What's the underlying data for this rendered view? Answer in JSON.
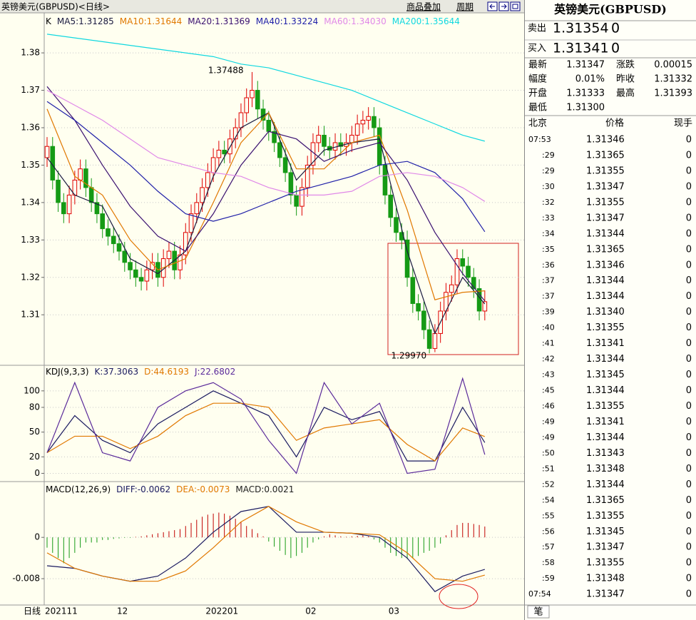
{
  "header": {
    "title": "英镑美元(GBPUSD)<日线>",
    "overlay": "商品叠加",
    "period": "周期"
  },
  "chart_data": [
    {
      "type": "candlestick",
      "legend_prefix": "K",
      "xlabel": "日线",
      "up_color": "#e00000",
      "down_color": "#159a15",
      "grid": true,
      "ylim": [
        1.2965,
        1.3907
      ],
      "yticks": [
        1.31,
        1.32,
        1.33,
        1.34,
        1.35,
        1.36,
        1.37,
        1.38
      ],
      "categories": [
        "202111",
        null,
        null,
        null,
        null,
        null,
        null,
        null,
        null,
        null,
        null,
        null,
        null,
        "12",
        null,
        null,
        null,
        null,
        null,
        null,
        null,
        null,
        null,
        null,
        null,
        null,
        null,
        null,
        null,
        "202201",
        null,
        null,
        null,
        null,
        null,
        null,
        null,
        null,
        null,
        null,
        null,
        null,
        null,
        null,
        null,
        null,
        null,
        "02",
        null,
        null,
        null,
        null,
        null,
        null,
        null,
        null,
        null,
        null,
        null,
        null,
        null,
        null,
        "03",
        null,
        null,
        null,
        null,
        null,
        null,
        null,
        null,
        null,
        null,
        null,
        null,
        null,
        null,
        null,
        null,
        null
      ],
      "open": [
        1.352,
        1.355,
        1.346,
        1.34,
        1.337,
        1.342,
        1.346,
        1.349,
        1.344,
        1.34,
        1.337,
        1.333,
        1.331,
        1.329,
        1.327,
        1.324,
        1.322,
        1.32,
        1.319,
        1.322,
        1.324,
        1.32,
        1.325,
        1.327,
        1.322,
        1.326,
        1.332,
        1.337,
        1.34,
        1.344,
        1.348,
        1.352,
        1.354,
        1.353,
        1.357,
        1.36,
        1.364,
        1.368,
        1.37,
        1.365,
        1.362,
        1.359,
        1.356,
        1.352,
        1.348,
        1.342,
        1.339,
        1.344,
        1.35,
        1.356,
        1.358,
        1.355,
        1.354,
        1.356,
        1.355,
        1.356,
        1.358,
        1.361,
        1.362,
        1.363,
        1.36,
        1.35,
        1.342,
        1.336,
        1.332,
        1.33,
        1.32,
        1.313,
        1.311,
        1.306,
        1.301,
        1.305,
        1.311,
        1.316,
        1.318,
        1.325,
        1.323,
        1.32,
        1.317,
        1.311
      ],
      "high": [
        1.3575,
        1.3575,
        1.3485,
        1.3425,
        1.3445,
        1.3485,
        1.3515,
        1.3515,
        1.3465,
        1.3425,
        1.3395,
        1.3355,
        1.3335,
        1.3315,
        1.3295,
        1.3265,
        1.3245,
        1.3225,
        1.3245,
        1.3265,
        1.3265,
        1.3275,
        1.3295,
        1.3295,
        1.3285,
        1.3345,
        1.3395,
        1.3425,
        1.3465,
        1.3505,
        1.3545,
        1.3565,
        1.3565,
        1.3595,
        1.3625,
        1.3665,
        1.3705,
        1.37488,
        1.3725,
        1.3675,
        1.3645,
        1.3615,
        1.3585,
        1.3545,
        1.3505,
        1.3445,
        1.3465,
        1.3525,
        1.3585,
        1.3605,
        1.3605,
        1.3575,
        1.3585,
        1.3585,
        1.3585,
        1.3605,
        1.3635,
        1.3645,
        1.3655,
        1.3655,
        1.3625,
        1.3525,
        1.3445,
        1.3385,
        1.3345,
        1.3325,
        1.3225,
        1.3155,
        1.3135,
        1.3085,
        1.3075,
        1.3135,
        1.3185,
        1.3205,
        1.3275,
        1.3275,
        1.3255,
        1.3225,
        1.3195,
        1.3165
      ],
      "low": [
        1.3495,
        1.3435,
        1.3375,
        1.3345,
        1.3345,
        1.3395,
        1.3435,
        1.3415,
        1.3375,
        1.3345,
        1.3305,
        1.3285,
        1.3265,
        1.3245,
        1.3215,
        1.3195,
        1.3175,
        1.3165,
        1.3165,
        1.3195,
        1.3175,
        1.3175,
        1.3225,
        1.3195,
        1.3195,
        1.3235,
        1.3295,
        1.3345,
        1.3375,
        1.3415,
        1.3455,
        1.3495,
        1.3505,
        1.3505,
        1.3545,
        1.3575,
        1.3615,
        1.3655,
        1.3625,
        1.3595,
        1.3565,
        1.3535,
        1.3495,
        1.3455,
        1.3395,
        1.3365,
        1.3365,
        1.3415,
        1.3475,
        1.3535,
        1.3525,
        1.3515,
        1.3515,
        1.3525,
        1.3525,
        1.3535,
        1.3555,
        1.3585,
        1.3595,
        1.3575,
        1.3475,
        1.3395,
        1.3335,
        1.3295,
        1.3275,
        1.3175,
        1.3105,
        1.3085,
        1.3035,
        1.2997,
        1.3,
        1.3025,
        1.3085,
        1.3135,
        1.3155,
        1.3205,
        1.3175,
        1.3145,
        1.3085,
        1.3085
      ],
      "close": [
        1.355,
        1.346,
        1.34,
        1.337,
        1.342,
        1.346,
        1.349,
        1.344,
        1.34,
        1.337,
        1.333,
        1.331,
        1.329,
        1.327,
        1.324,
        1.322,
        1.32,
        1.319,
        1.322,
        1.324,
        1.32,
        1.325,
        1.327,
        1.322,
        1.326,
        1.332,
        1.337,
        1.34,
        1.344,
        1.348,
        1.352,
        1.354,
        1.353,
        1.357,
        1.36,
        1.364,
        1.368,
        1.37,
        1.365,
        1.362,
        1.359,
        1.356,
        1.352,
        1.348,
        1.342,
        1.339,
        1.344,
        1.35,
        1.356,
        1.358,
        1.355,
        1.354,
        1.356,
        1.355,
        1.356,
        1.358,
        1.361,
        1.362,
        1.363,
        1.36,
        1.35,
        1.342,
        1.336,
        1.332,
        1.33,
        1.32,
        1.313,
        1.311,
        1.306,
        1.301,
        1.305,
        1.311,
        1.316,
        1.318,
        1.325,
        1.323,
        1.32,
        1.317,
        1.311,
        1.3135
      ],
      "annotations": [
        {
          "value": 1.37488,
          "at": "high"
        },
        {
          "value": 1.2997,
          "label": "1.29970",
          "at": "low"
        }
      ],
      "x": [
        0,
        5,
        10,
        15,
        20,
        25,
        30,
        35,
        40,
        45,
        50,
        55,
        60,
        65,
        70,
        75,
        79
      ],
      "series": [
        {
          "name": "MA5:1.31285",
          "color": "#1a1a40",
          "values": [
            1.352,
            1.342,
            1.339,
            1.325,
            1.321,
            1.327,
            1.347,
            1.36,
            1.364,
            1.346,
            1.354,
            1.356,
            1.357,
            1.327,
            1.305,
            1.32,
            1.3129
          ]
        },
        {
          "name": "MA10:1.31644",
          "color": "#e07800",
          "values": [
            1.365,
            1.347,
            1.342,
            1.33,
            1.322,
            1.325,
            1.34,
            1.356,
            1.364,
            1.349,
            1.349,
            1.356,
            1.358,
            1.338,
            1.314,
            1.316,
            1.3164
          ]
        },
        {
          "name": "MA20:1.31369",
          "color": "#3a1070",
          "values": [
            1.371,
            1.362,
            1.35,
            1.339,
            1.331,
            1.327,
            1.337,
            1.35,
            1.359,
            1.357,
            1.351,
            1.354,
            1.356,
            1.346,
            1.332,
            1.321,
            1.3137
          ]
        },
        {
          "name": "MA40:1.33224",
          "color": "#2020a8",
          "values": [
            1.367,
            1.362,
            1.356,
            1.35,
            1.343,
            1.337,
            1.335,
            1.337,
            1.34,
            1.343,
            1.345,
            1.347,
            1.35,
            1.351,
            1.348,
            1.341,
            1.3322
          ]
        },
        {
          "name": "MA60:1.34030",
          "color": "#e088e8",
          "values": [
            1.37,
            1.366,
            1.362,
            1.357,
            1.352,
            1.35,
            1.348,
            1.347,
            1.344,
            1.342,
            1.342,
            1.343,
            1.347,
            1.348,
            1.347,
            1.344,
            1.3403
          ]
        },
        {
          "name": "MA200:1.35644",
          "color": "#10d8e0",
          "values": [
            1.385,
            1.384,
            1.383,
            1.382,
            1.381,
            1.38,
            1.379,
            1.377,
            1.376,
            1.374,
            1.372,
            1.37,
            1.367,
            1.364,
            1.361,
            1.358,
            1.3564
          ]
        }
      ]
    },
    {
      "type": "line",
      "title": "KDJ(9,3,3)",
      "ylim": [
        -10,
        131
      ],
      "yticks": [
        0,
        20,
        50,
        80,
        100
      ],
      "grid": true,
      "x": [
        0,
        5,
        10,
        15,
        20,
        25,
        30,
        35,
        40,
        45,
        50,
        55,
        60,
        65,
        70,
        75,
        79
      ],
      "series": [
        {
          "name": "K:37.3063",
          "color": "#1a1a60",
          "values": [
            25,
            70,
            40,
            25,
            60,
            80,
            100,
            85,
            70,
            20,
            80,
            65,
            75,
            15,
            15,
            80,
            37.3
          ]
        },
        {
          "name": "D:44.6193",
          "color": "#e07800",
          "values": [
            25,
            45,
            45,
            30,
            45,
            70,
            85,
            85,
            80,
            40,
            55,
            60,
            65,
            35,
            15,
            55,
            44.6
          ]
        },
        {
          "name": "J:22.6802",
          "color": "#5a2a9a",
          "values": [
            25,
            110,
            25,
            15,
            80,
            100,
            110,
            90,
            40,
            0,
            110,
            60,
            85,
            0,
            5,
            115,
            22.7
          ]
        }
      ]
    },
    {
      "type": "macd",
      "title": "MACD(12,26,9)",
      "ylim": [
        -0.0131,
        0.0108
      ],
      "yticks": [
        0,
        -0.008
      ],
      "grid": true,
      "up_color": "#c00000",
      "down_color": "#159a15",
      "x": [
        0,
        5,
        10,
        15,
        20,
        25,
        30,
        35,
        40,
        45,
        50,
        55,
        60,
        65,
        70,
        75,
        79
      ],
      "series": [
        {
          "name": "DIFF:-0.0062",
          "color": "#1a1a60",
          "values": [
            -0.0055,
            -0.006,
            -0.0075,
            -0.0085,
            -0.0075,
            -0.004,
            0.001,
            0.005,
            0.006,
            0.001,
            0.001,
            0.0008,
            0,
            -0.004,
            -0.0105,
            -0.0075,
            -0.0062
          ]
        },
        {
          "name": "DEA:-0.0073",
          "color": "#e07800",
          "values": [
            -0.003,
            -0.006,
            -0.0075,
            -0.0085,
            -0.0085,
            -0.0065,
            -0.002,
            0.003,
            0.006,
            0.003,
            0.001,
            0.0008,
            0.0005,
            -0.003,
            -0.008,
            -0.0085,
            -0.0073
          ]
        }
      ],
      "histogram": {
        "name": "MACD:0.0021",
        "color": "#202020",
        "values": [
          -0.002,
          -0.003,
          -0.004,
          -0.005,
          -0.004,
          -0.003,
          -0.002,
          -0.001,
          -0.001,
          -0.001,
          -0.0005,
          -0.0005,
          -0.0003,
          -0.0002,
          -0.0001,
          -0.0001,
          0.0001,
          0.0002,
          0.0004,
          0.0006,
          0.0008,
          0.001,
          0.0012,
          0.0014,
          0.0016,
          0.0022,
          0.0028,
          0.0034,
          0.004,
          0.0044,
          0.0046,
          0.0048,
          0.0046,
          0.0042,
          0.0036,
          0.003,
          0.0022,
          0.0016,
          0.0008,
          0.0002,
          -0.0008,
          -0.0018,
          -0.0026,
          -0.0034,
          -0.004,
          -0.0036,
          -0.003,
          -0.002,
          -0.001,
          -0.0004,
          0.0002,
          0.0006,
          0.0004,
          0.0002,
          0.0001,
          0.0002,
          0.0003,
          0.0004,
          0.0002,
          -0.0004,
          -0.001,
          -0.002,
          -0.003,
          -0.0036,
          -0.004,
          -0.0042,
          -0.004,
          -0.0036,
          -0.003,
          -0.0026,
          -0.002,
          -0.0012,
          0.0004,
          0.0014,
          0.0024,
          0.0028,
          0.0028,
          0.0026,
          0.0024,
          0.0021
        ]
      }
    }
  ],
  "quote": {
    "title": "英镑美元(GBPUSD)",
    "sell": [
      "卖出",
      "1.31354",
      "0"
    ],
    "buy": [
      "买入",
      "1.31341",
      "0"
    ],
    "stats": [
      [
        "最新",
        "1.31347",
        "涨跌",
        "0.00015"
      ],
      [
        "幅度",
        "0.01%",
        "昨收",
        "1.31332"
      ],
      [
        "开盘",
        "1.31333",
        "最高",
        "1.31393"
      ],
      [
        "最低",
        "1.31300"
      ]
    ],
    "ticks_header": [
      "北京",
      "价格",
      "现手"
    ],
    "ticks": [
      [
        "07:53",
        "1.31346",
        "0"
      ],
      [
        ":29",
        "1.31365",
        "0"
      ],
      [
        ":29",
        "1.31355",
        "0"
      ],
      [
        ":30",
        "1.31347",
        "0"
      ],
      [
        ":32",
        "1.31355",
        "0"
      ],
      [
        ":33",
        "1.31347",
        "0"
      ],
      [
        ":34",
        "1.31344",
        "0"
      ],
      [
        ":35",
        "1.31365",
        "0"
      ],
      [
        ":36",
        "1.31346",
        "0"
      ],
      [
        ":37",
        "1.31344",
        "0"
      ],
      [
        ":37",
        "1.31344",
        "0"
      ],
      [
        ":39",
        "1.31340",
        "0"
      ],
      [
        ":40",
        "1.31355",
        "0"
      ],
      [
        ":41",
        "1.31341",
        "0"
      ],
      [
        ":42",
        "1.31344",
        "0"
      ],
      [
        ":43",
        "1.31345",
        "0"
      ],
      [
        ":45",
        "1.31344",
        "0"
      ],
      [
        ":46",
        "1.31355",
        "0"
      ],
      [
        ":49",
        "1.31341",
        "0"
      ],
      [
        ":49",
        "1.31344",
        "0"
      ],
      [
        ":50",
        "1.31343",
        "0"
      ],
      [
        ":51",
        "1.31348",
        "0"
      ],
      [
        ":52",
        "1.31344",
        "0"
      ],
      [
        ":54",
        "1.31365",
        "0"
      ],
      [
        ":55",
        "1.31355",
        "0"
      ],
      [
        ":56",
        "1.31345",
        "0"
      ],
      [
        ":57",
        "1.31347",
        "0"
      ],
      [
        ":58",
        "1.31355",
        "0"
      ],
      [
        ":59",
        "1.31348",
        "0"
      ],
      [
        "07:54",
        "1.31347",
        "0"
      ]
    ],
    "tab": "笔"
  }
}
